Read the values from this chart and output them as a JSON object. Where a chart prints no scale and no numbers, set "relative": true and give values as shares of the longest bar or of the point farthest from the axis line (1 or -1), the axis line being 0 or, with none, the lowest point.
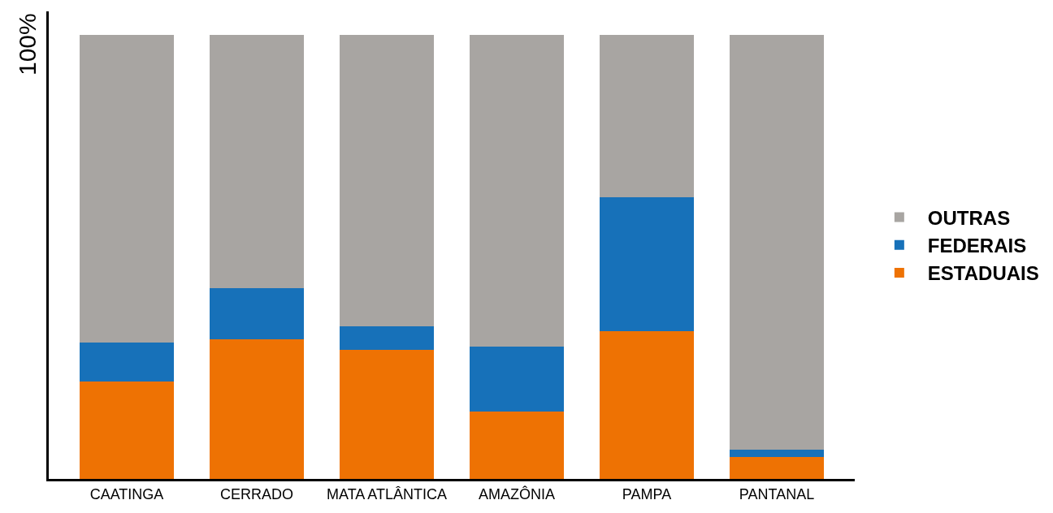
{
  "chart_data": {
    "type": "bar",
    "stacked": true,
    "relative": true,
    "ylabel": "100%",
    "categories": [
      "CAATINGA",
      "CERRADO",
      "MATA ATLÂNTICA",
      "AMAZÔNIA",
      "PAMPA",
      "PANTANAL"
    ],
    "series": [
      {
        "name": "ESTADUAIS",
        "color": "#ee7203",
        "values": [
          0.22,
          0.314,
          0.29,
          0.151,
          0.333,
          0.05
        ]
      },
      {
        "name": "FEDERAIS",
        "color": "#1771b9",
        "values": [
          0.087,
          0.115,
          0.054,
          0.146,
          0.302,
          0.016
        ]
      },
      {
        "name": "OUTRAS",
        "color": "#a8a5a2",
        "values": [
          0.693,
          0.571,
          0.656,
          0.703,
          0.365,
          0.934
        ]
      }
    ],
    "grid": false,
    "legend": "right"
  }
}
